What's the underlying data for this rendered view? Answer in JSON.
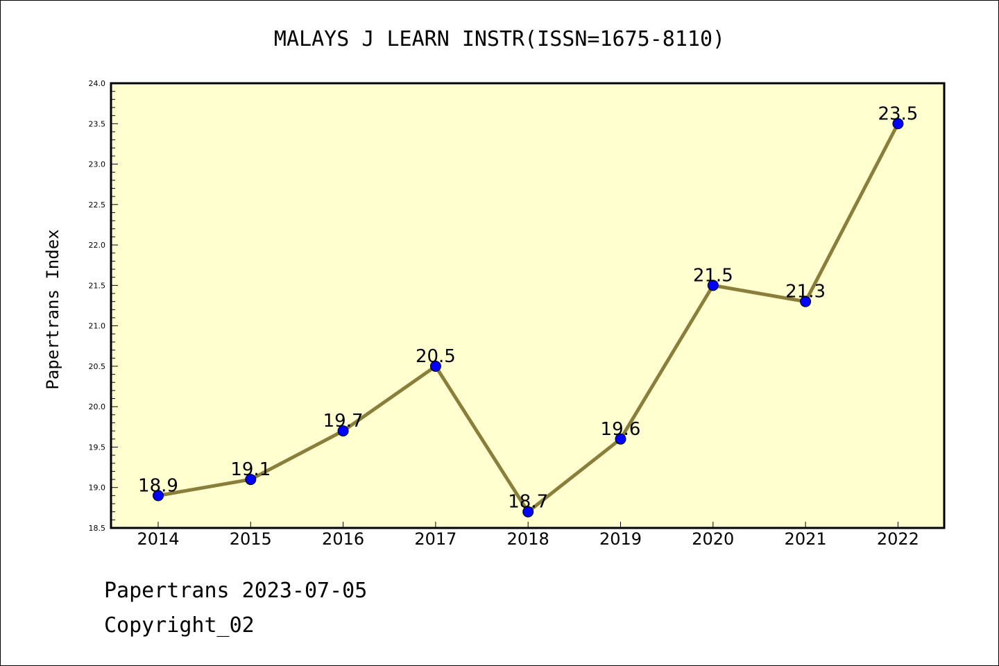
{
  "chart_data": {
    "type": "line",
    "title": "MALAYS J LEARN INSTR(ISSN=1675-8110)",
    "xlabel": "",
    "ylabel": "Papertrans Index",
    "categories": [
      "2014",
      "2015",
      "2016",
      "2017",
      "2018",
      "2019",
      "2020",
      "2021",
      "2022"
    ],
    "values": [
      18.9,
      19.1,
      19.7,
      20.5,
      18.7,
      19.6,
      21.5,
      21.3,
      23.5
    ],
    "data_labels": [
      "18.9",
      "19.1",
      "19.7",
      "20.5",
      "18.7",
      "19.6",
      "21.5",
      "21.3",
      "23.5"
    ],
    "ylim": [
      18.5,
      24.0
    ],
    "yticks": [
      "18.5",
      "19.0",
      "19.5",
      "20.0",
      "20.5",
      "21.0",
      "21.5",
      "22.0",
      "22.5",
      "23.0",
      "23.5",
      "24.0"
    ],
    "grid": false,
    "colors": {
      "line": "#8b7d3a",
      "marker": "#0000ff",
      "plot_background": "#ffffd0"
    }
  },
  "footer": {
    "line1": "Papertrans 2023-07-05",
    "line2": "Copyright_02"
  }
}
